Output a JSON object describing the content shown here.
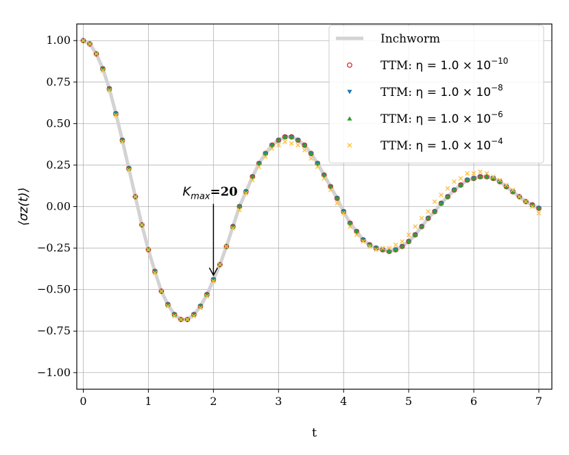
{
  "chart_data": {
    "type": "scatter",
    "title": "",
    "xlabel": "t",
    "ylabel": "⟨σz(t)⟩",
    "xlim": [
      -0.1,
      7.2
    ],
    "ylim": [
      -1.1,
      1.1
    ],
    "xticks": [
      0,
      1,
      2,
      3,
      4,
      5,
      6,
      7
    ],
    "yticks": [
      1.0,
      0.75,
      0.5,
      0.25,
      0.0,
      -0.25,
      -0.5,
      -0.75,
      -1.0
    ],
    "ytick_labels": [
      "1.00",
      "0.75",
      "0.50",
      "0.25",
      "0.00",
      "−0.25",
      "−0.50",
      "−0.75",
      "−1.00"
    ],
    "grid": true,
    "legend_position": "top-right",
    "x": [
      0.0,
      0.1,
      0.2,
      0.3,
      0.4,
      0.5,
      0.6,
      0.7,
      0.8,
      0.9,
      1.0,
      1.1,
      1.2,
      1.3,
      1.4,
      1.5,
      1.6,
      1.7,
      1.8,
      1.9,
      2.0,
      2.1,
      2.2,
      2.3,
      2.4,
      2.5,
      2.6,
      2.7,
      2.8,
      2.9,
      3.0,
      3.1,
      3.2,
      3.3,
      3.4,
      3.5,
      3.6,
      3.7,
      3.8,
      3.9,
      4.0,
      4.1,
      4.2,
      4.3,
      4.4,
      4.5,
      4.6,
      4.7,
      4.8,
      4.9,
      5.0,
      5.1,
      5.2,
      5.3,
      5.4,
      5.5,
      5.6,
      5.7,
      5.8,
      5.9,
      6.0,
      6.1,
      6.2,
      6.3,
      6.4,
      6.5,
      6.6,
      6.7,
      6.8,
      6.9,
      7.0
    ],
    "series": [
      {
        "name": "Inchworm",
        "style": "line",
        "color": "#d3d3d3",
        "y": [
          1.0,
          0.98,
          0.92,
          0.83,
          0.71,
          0.56,
          0.4,
          0.23,
          0.06,
          -0.11,
          -0.26,
          -0.39,
          -0.51,
          -0.59,
          -0.65,
          -0.68,
          -0.68,
          -0.65,
          -0.6,
          -0.53,
          -0.44,
          -0.35,
          -0.24,
          -0.12,
          -0.0,
          0.09,
          0.18,
          0.26,
          0.32,
          0.37,
          0.4,
          0.42,
          0.42,
          0.4,
          0.37,
          0.32,
          0.26,
          0.19,
          0.12,
          0.05,
          -0.03,
          -0.1,
          -0.15,
          -0.2,
          -0.23,
          -0.25,
          -0.26,
          -0.27,
          -0.26,
          -0.24,
          -0.21,
          -0.17,
          -0.12,
          -0.07,
          -0.03,
          0.02,
          0.06,
          0.1,
          0.13,
          0.16,
          0.17,
          0.18,
          0.18,
          0.17,
          0.15,
          0.12,
          0.09,
          0.06,
          0.03,
          0.01,
          -0.01
        ]
      },
      {
        "name": "η = 1.0 × 10",
        "exponent": "−10",
        "style": "marker",
        "marker": "circle",
        "color": "#d62728",
        "y": [
          1.0,
          0.98,
          0.92,
          0.83,
          0.71,
          0.56,
          0.4,
          0.23,
          0.06,
          -0.11,
          -0.26,
          -0.39,
          -0.51,
          -0.59,
          -0.65,
          -0.68,
          -0.68,
          -0.65,
          -0.6,
          -0.53,
          -0.44,
          -0.35,
          -0.24,
          -0.12,
          -0.0,
          0.09,
          0.18,
          0.26,
          0.32,
          0.37,
          0.4,
          0.42,
          0.42,
          0.4,
          0.37,
          0.32,
          0.26,
          0.19,
          0.12,
          0.05,
          -0.03,
          -0.1,
          -0.15,
          -0.2,
          -0.23,
          -0.25,
          -0.26,
          -0.27,
          -0.26,
          -0.24,
          -0.21,
          -0.17,
          -0.12,
          -0.07,
          -0.03,
          0.02,
          0.06,
          0.1,
          0.13,
          0.16,
          0.17,
          0.18,
          0.18,
          0.17,
          0.15,
          0.12,
          0.09,
          0.06,
          0.03,
          0.01,
          -0.01
        ]
      },
      {
        "name": "η = 1.0 × 10",
        "exponent": "−8",
        "style": "marker",
        "marker": "triangle-down",
        "color": "#1f77b4",
        "y": [
          1.0,
          0.98,
          0.92,
          0.83,
          0.71,
          0.56,
          0.4,
          0.23,
          0.06,
          -0.11,
          -0.26,
          -0.39,
          -0.51,
          -0.59,
          -0.65,
          -0.68,
          -0.68,
          -0.65,
          -0.6,
          -0.53,
          -0.44,
          -0.35,
          -0.24,
          -0.12,
          -0.0,
          0.09,
          0.18,
          0.26,
          0.32,
          0.37,
          0.4,
          0.42,
          0.42,
          0.4,
          0.37,
          0.32,
          0.26,
          0.19,
          0.12,
          0.05,
          -0.03,
          -0.1,
          -0.15,
          -0.2,
          -0.23,
          -0.25,
          -0.26,
          -0.27,
          -0.26,
          -0.24,
          -0.21,
          -0.17,
          -0.12,
          -0.07,
          -0.03,
          0.02,
          0.06,
          0.1,
          0.13,
          0.16,
          0.17,
          0.18,
          0.18,
          0.17,
          0.15,
          0.12,
          0.09,
          0.06,
          0.03,
          0.01,
          -0.01
        ]
      },
      {
        "name": "η = 1.0 × 10",
        "exponent": "−6",
        "style": "marker",
        "marker": "triangle-up",
        "color": "#2ca02c",
        "y": [
          1.0,
          0.98,
          0.92,
          0.83,
          0.71,
          0.56,
          0.4,
          0.23,
          0.06,
          -0.11,
          -0.26,
          -0.39,
          -0.51,
          -0.59,
          -0.65,
          -0.68,
          -0.68,
          -0.65,
          -0.6,
          -0.53,
          -0.44,
          -0.35,
          -0.24,
          -0.12,
          -0.0,
          0.09,
          0.18,
          0.26,
          0.32,
          0.37,
          0.4,
          0.42,
          0.42,
          0.4,
          0.37,
          0.32,
          0.26,
          0.19,
          0.12,
          0.05,
          -0.03,
          -0.1,
          -0.15,
          -0.2,
          -0.23,
          -0.25,
          -0.26,
          -0.27,
          -0.26,
          -0.24,
          -0.21,
          -0.17,
          -0.12,
          -0.07,
          -0.03,
          0.02,
          0.06,
          0.1,
          0.13,
          0.16,
          0.17,
          0.18,
          0.18,
          0.17,
          0.15,
          0.12,
          0.09,
          0.06,
          0.03,
          0.01,
          -0.01
        ]
      },
      {
        "name": "η = 1.0 × 10",
        "exponent": "−4",
        "style": "marker",
        "marker": "x",
        "color": "#ffbf3f",
        "y": [
          1.0,
          0.98,
          0.92,
          0.82,
          0.7,
          0.55,
          0.39,
          0.22,
          0.06,
          -0.11,
          -0.26,
          -0.4,
          -0.51,
          -0.6,
          -0.66,
          -0.68,
          -0.68,
          -0.66,
          -0.61,
          -0.54,
          -0.45,
          -0.35,
          -0.24,
          -0.13,
          -0.02,
          0.08,
          0.16,
          0.24,
          0.3,
          0.35,
          0.37,
          0.39,
          0.38,
          0.37,
          0.34,
          0.29,
          0.24,
          0.17,
          0.1,
          0.02,
          -0.04,
          -0.12,
          -0.17,
          -0.21,
          -0.24,
          -0.26,
          -0.25,
          -0.25,
          -0.23,
          -0.21,
          -0.17,
          -0.12,
          -0.07,
          -0.03,
          0.03,
          0.07,
          0.11,
          0.15,
          0.17,
          0.2,
          0.2,
          0.21,
          0.2,
          0.18,
          0.16,
          0.13,
          0.1,
          0.06,
          0.03,
          0.0,
          -0.04
        ]
      }
    ],
    "annotation": {
      "text_symbol": "K",
      "text_subscript": "max",
      "text_value": "=20",
      "x": 2.0,
      "y_target": -0.43,
      "y_text": 0.0
    }
  }
}
